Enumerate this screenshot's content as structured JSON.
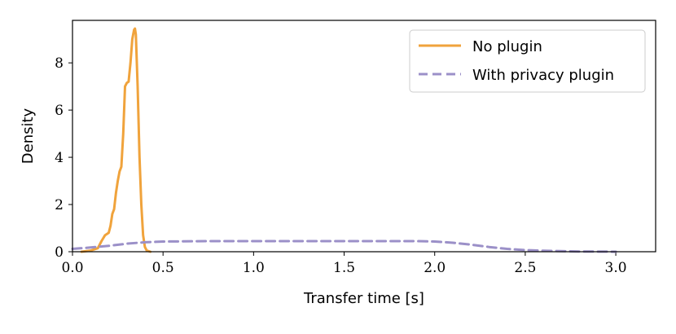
{
  "chart_data": {
    "type": "line",
    "xlabel": "Transfer time [s]",
    "ylabel": "Density",
    "xlim": [
      0.0,
      3.22
    ],
    "ylim": [
      0,
      9.8
    ],
    "xticks": [
      "0.0",
      "0.5",
      "1.0",
      "1.5",
      "2.0",
      "2.5",
      "3.0"
    ],
    "yticks": [
      "0",
      "2",
      "4",
      "6",
      "8"
    ],
    "grid": false,
    "legend_position": "top-right",
    "series": [
      {
        "name": "No plugin",
        "color": "#f0a33c",
        "style": "solid",
        "x": [
          0.05,
          0.1,
          0.14,
          0.16,
          0.18,
          0.2,
          0.21,
          0.22,
          0.23,
          0.24,
          0.25,
          0.26,
          0.27,
          0.28,
          0.29,
          0.3,
          0.31,
          0.32,
          0.33,
          0.34,
          0.345,
          0.35,
          0.36,
          0.37,
          0.38,
          0.39,
          0.4,
          0.41,
          0.43
        ],
        "y": [
          0.0,
          0.05,
          0.15,
          0.45,
          0.7,
          0.8,
          1.1,
          1.6,
          1.8,
          2.5,
          3.0,
          3.4,
          3.6,
          5.0,
          7.0,
          7.15,
          7.2,
          8.0,
          9.0,
          9.4,
          9.45,
          9.2,
          7.0,
          4.0,
          2.0,
          0.7,
          0.2,
          0.05,
          0.0
        ]
      },
      {
        "name": "With privacy plugin",
        "color": "#9b90c8",
        "style": "dashed",
        "x": [
          0.0,
          0.1,
          0.2,
          0.3,
          0.4,
          0.5,
          0.75,
          1.0,
          1.25,
          1.5,
          1.75,
          1.9,
          2.0,
          2.1,
          2.2,
          2.3,
          2.4,
          2.5,
          2.6,
          2.8,
          3.0
        ],
        "y": [
          0.12,
          0.18,
          0.25,
          0.34,
          0.4,
          0.43,
          0.45,
          0.45,
          0.45,
          0.45,
          0.45,
          0.45,
          0.43,
          0.38,
          0.3,
          0.2,
          0.12,
          0.07,
          0.04,
          0.01,
          0.0
        ]
      }
    ]
  }
}
